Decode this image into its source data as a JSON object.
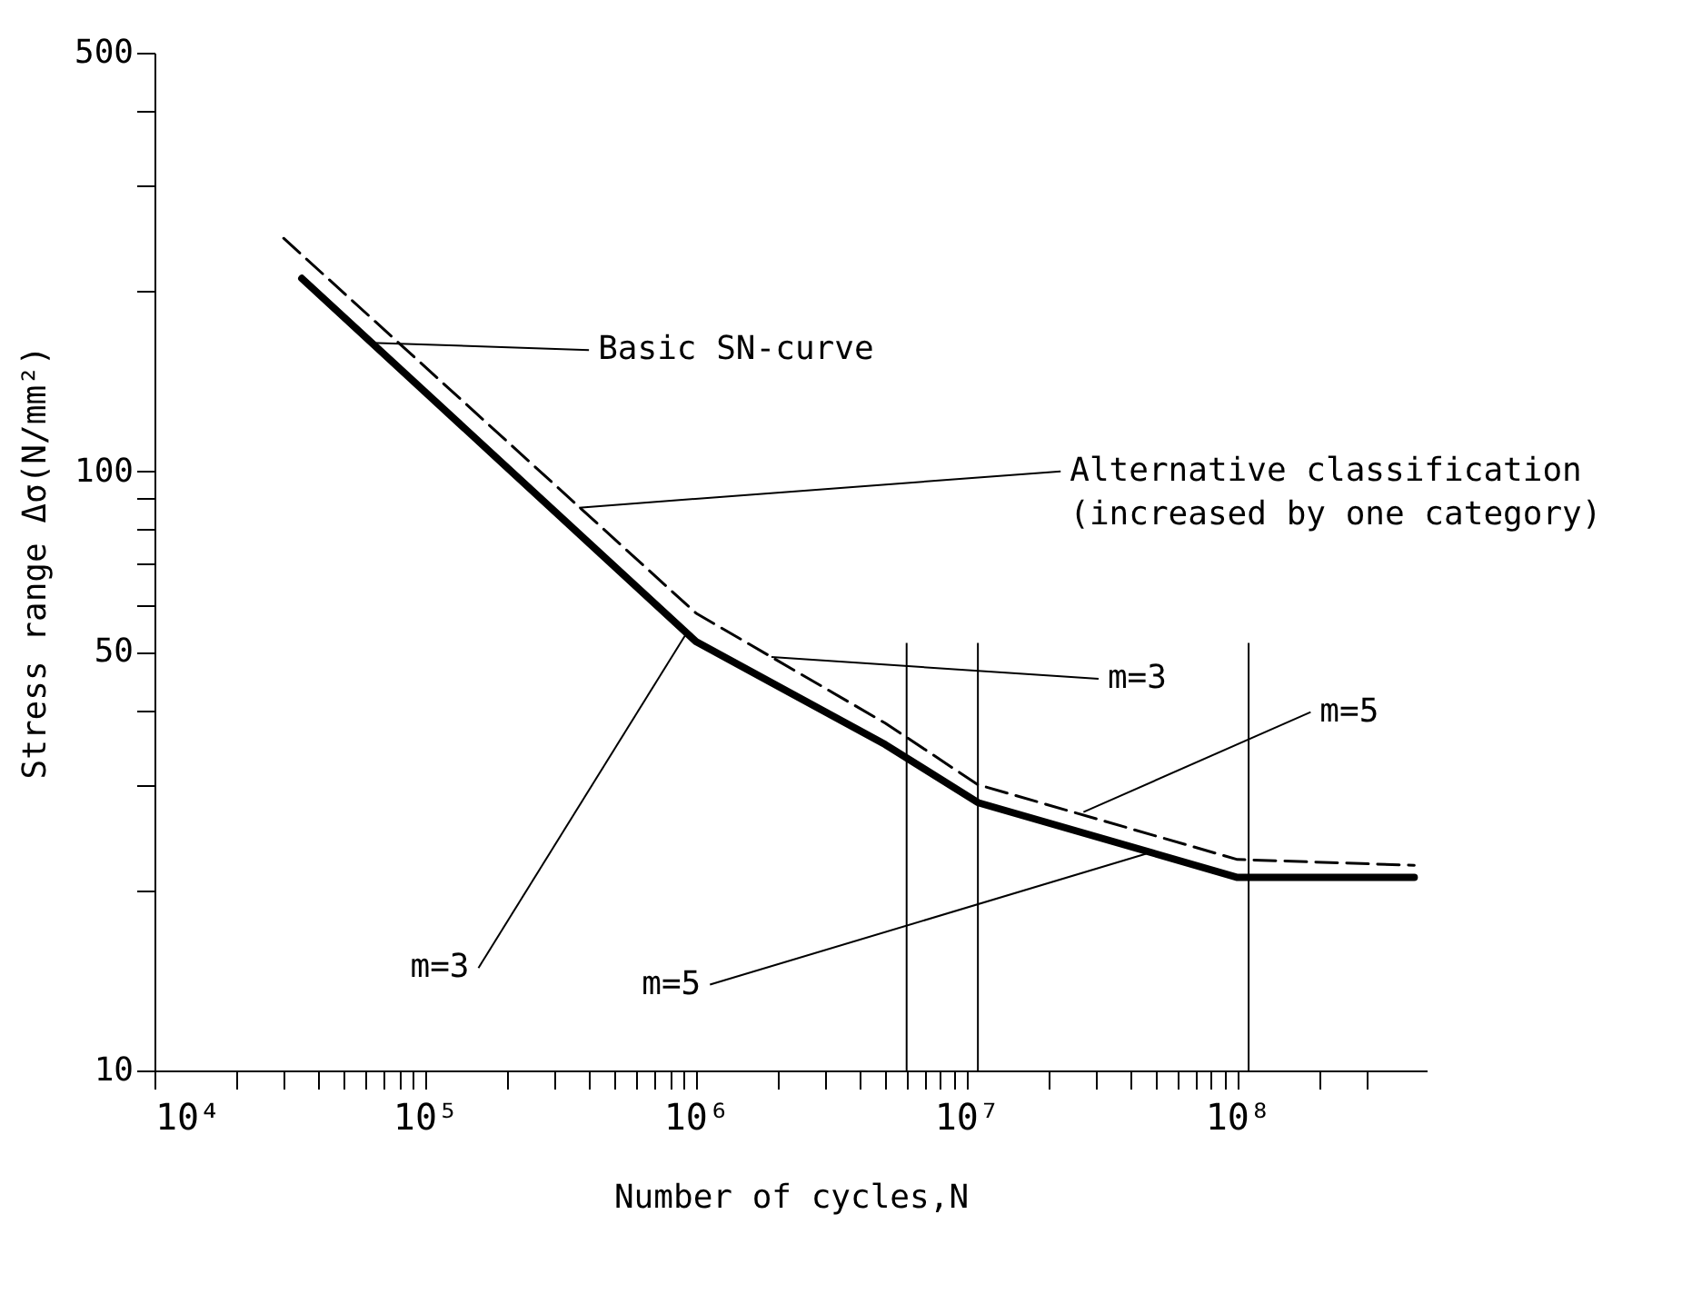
{
  "chart_data": {
    "type": "line",
    "xlabel": "Number of cycles,N",
    "ylabel": "Stress range Δσ(N/mm²)",
    "log": "xy",
    "grid": false,
    "marker": "none",
    "xlim": [
      10000,
      500000000
    ],
    "ylim": [
      10,
      500
    ],
    "xticks": [
      {
        "value": 10000,
        "label": "10⁴"
      },
      {
        "value": 20000,
        "label": null
      },
      {
        "value": 30000,
        "label": null
      },
      {
        "value": 40000,
        "label": null
      },
      {
        "value": 50000,
        "label": null
      },
      {
        "value": 60000,
        "label": null
      },
      {
        "value": 70000,
        "label": null
      },
      {
        "value": 80000,
        "label": null
      },
      {
        "value": 90000,
        "label": null
      },
      {
        "value": 100000,
        "label": "10⁵"
      },
      {
        "value": 200000,
        "label": null
      },
      {
        "value": 300000,
        "label": null
      },
      {
        "value": 400000,
        "label": null
      },
      {
        "value": 500000,
        "label": null
      },
      {
        "value": 600000,
        "label": null
      },
      {
        "value": 700000,
        "label": null
      },
      {
        "value": 800000,
        "label": null
      },
      {
        "value": 900000,
        "label": null
      },
      {
        "value": 1000000,
        "label": "10⁶"
      },
      {
        "value": 2000000,
        "label": null
      },
      {
        "value": 3000000,
        "label": null
      },
      {
        "value": 4000000,
        "label": null
      },
      {
        "value": 5000000,
        "label": null
      },
      {
        "value": 6000000,
        "label": null
      },
      {
        "value": 7000000,
        "label": null
      },
      {
        "value": 8000000,
        "label": null
      },
      {
        "value": 9000000,
        "label": null
      },
      {
        "value": 10000000,
        "label": "10⁷"
      },
      {
        "value": 20000000,
        "label": null
      },
      {
        "value": 30000000,
        "label": null
      },
      {
        "value": 40000000,
        "label": null
      },
      {
        "value": 50000000,
        "label": null
      },
      {
        "value": 60000000,
        "label": null
      },
      {
        "value": 70000000,
        "label": null
      },
      {
        "value": 80000000,
        "label": null
      },
      {
        "value": 90000000,
        "label": null
      },
      {
        "value": 100000000,
        "label": "10⁸"
      },
      {
        "value": 200000000,
        "label": null
      },
      {
        "value": 300000000,
        "label": null
      }
    ],
    "yticks": [
      10,
      {
        "value": 20,
        "label": null
      },
      {
        "value": 30,
        "label": null
      },
      {
        "value": 40,
        "label": null
      },
      50,
      {
        "value": 60,
        "label": null
      },
      {
        "value": 70,
        "label": null
      },
      {
        "value": 80,
        "label": null
      },
      {
        "value": 90,
        "label": null
      },
      100,
      {
        "value": 200,
        "label": null
      },
      {
        "value": 300,
        "label": null
      },
      {
        "value": 400,
        "label": null
      },
      500
    ],
    "series": [
      {
        "color": "#000000",
        "line_style": "solid",
        "x": [
          35000,
          1000000,
          5000000,
          11000000,
          100000000,
          450000000
        ],
        "values": [
          210,
          52,
          35,
          28,
          21,
          21
        ]
      },
      {
        "color": "#000000",
        "line_style": "dashed",
        "x": [
          30000,
          1000000,
          5000000,
          11000000,
          100000000,
          450000000
        ],
        "values": [
          245,
          58,
          38,
          30,
          22.5,
          22
        ]
      }
    ],
    "ref_lines": [
      {
        "axis": "x",
        "value": 6000000,
        "label": null,
        "color": "#000000"
      },
      {
        "axis": "x",
        "value": 11000000,
        "label": null,
        "color": "#000000"
      },
      {
        "axis": "x",
        "value": 110000000,
        "label": null,
        "color": "#000000"
      }
    ],
    "annotations": [
      {
        "text": "Basic SN-curve",
        "x": 63000,
        "y": 164
      },
      {
        "text": "Alternative classification\n(increased by one category)",
        "x": 370000,
        "y": 87
      },
      {
        "text": "m=3",
        "x": 1900000,
        "y": 49
      },
      {
        "text": "m=3",
        "x": 930000,
        "y": 54
      },
      {
        "text": "m=5",
        "x": 27000000,
        "y": 27
      },
      {
        "text": "m=5",
        "x": 46000000,
        "y": 23
      }
    ]
  }
}
